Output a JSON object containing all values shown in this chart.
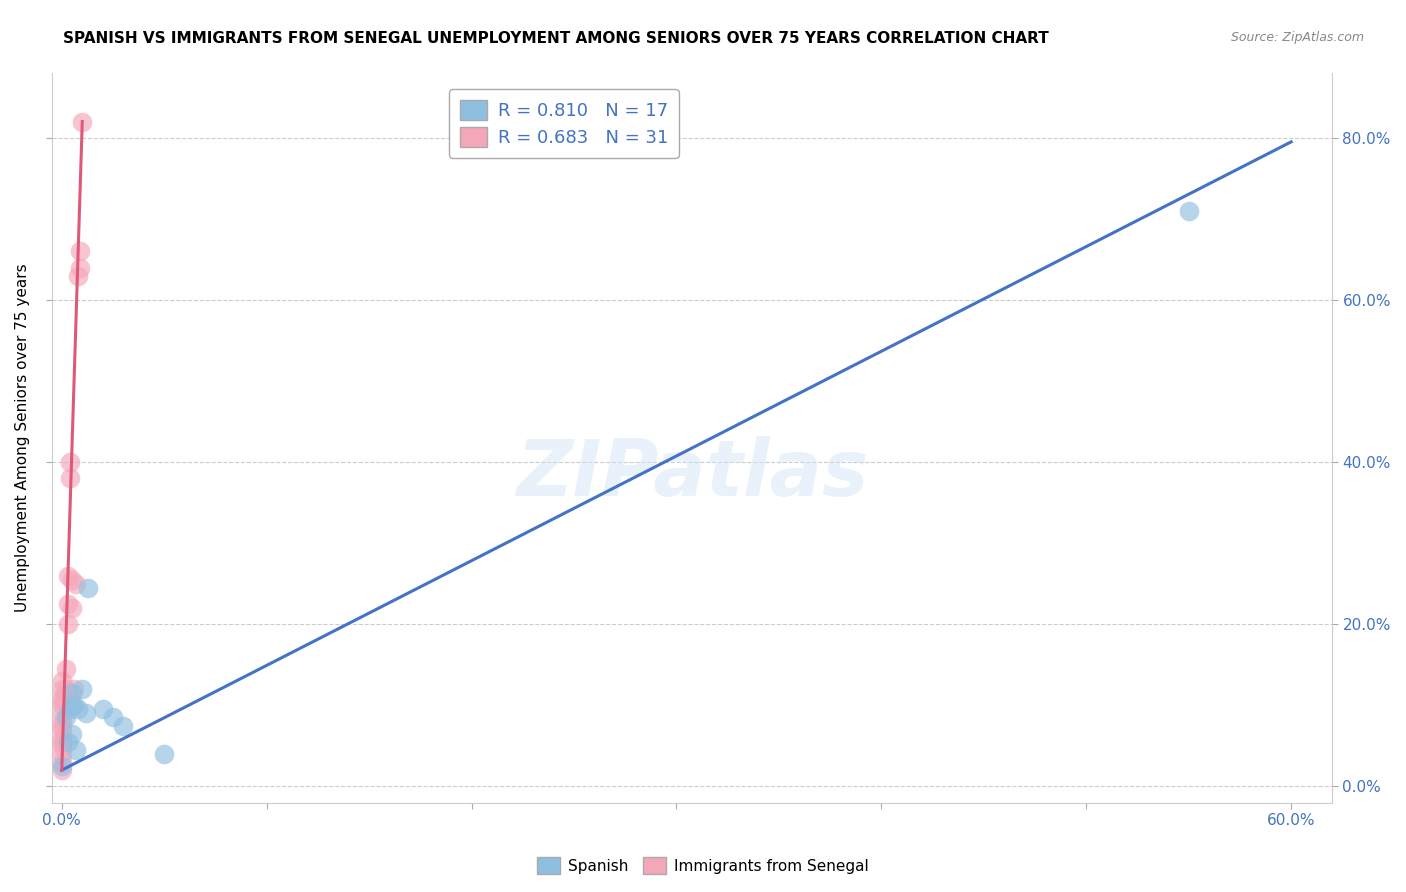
{
  "title": "SPANISH VS IMMIGRANTS FROM SENEGAL UNEMPLOYMENT AMONG SENIORS OVER 75 YEARS CORRELATION CHART",
  "source": "Source: ZipAtlas.com",
  "ylabel": "Unemployment Among Seniors over 75 years",
  "xlim": [
    -0.005,
    0.62
  ],
  "ylim": [
    -0.02,
    0.88
  ],
  "x_ticks": [
    0.0,
    0.1,
    0.2,
    0.3,
    0.4,
    0.5,
    0.6
  ],
  "y_ticks": [
    0.0,
    0.2,
    0.4,
    0.6,
    0.8
  ],
  "legend_labels": [
    "R = 0.810   N = 17",
    "R = 0.683   N = 31"
  ],
  "bottom_legend": [
    "Spanish",
    "Immigrants from Senegal"
  ],
  "blue_scatter_color": "#8fbfe0",
  "pink_scatter_color": "#f4a7b9",
  "blue_line_color": "#4472c4",
  "pink_line_color": "#e05878",
  "tick_label_color": "#4472c4",
  "watermark": "ZIPatlas",
  "title_fontsize": 11,
  "source_fontsize": 9,
  "spanish_x": [
    0.0,
    0.002,
    0.003,
    0.004,
    0.005,
    0.005,
    0.006,
    0.007,
    0.008,
    0.01,
    0.012,
    0.013,
    0.02,
    0.025,
    0.03,
    0.05,
    0.55
  ],
  "spanish_y": [
    0.025,
    0.085,
    0.055,
    0.095,
    0.115,
    0.065,
    0.1,
    0.045,
    0.095,
    0.12,
    0.09,
    0.245,
    0.095,
    0.085,
    0.075,
    0.04,
    0.71
  ],
  "senegal_x": [
    0.0,
    0.0,
    0.0,
    0.0,
    0.0,
    0.0,
    0.0,
    0.0,
    0.0,
    0.0,
    0.0,
    0.0,
    0.0,
    0.0,
    0.0,
    0.002,
    0.002,
    0.003,
    0.003,
    0.003,
    0.004,
    0.004,
    0.005,
    0.005,
    0.005,
    0.006,
    0.007,
    0.008,
    0.009,
    0.009,
    0.01
  ],
  "senegal_y": [
    0.02,
    0.03,
    0.04,
    0.05,
    0.055,
    0.06,
    0.07,
    0.075,
    0.08,
    0.09,
    0.1,
    0.105,
    0.11,
    0.12,
    0.13,
    0.12,
    0.145,
    0.2,
    0.225,
    0.26,
    0.38,
    0.4,
    0.1,
    0.22,
    0.255,
    0.12,
    0.25,
    0.63,
    0.64,
    0.66,
    0.82
  ],
  "blue_line_x": [
    0.0,
    0.6
  ],
  "blue_line_y": [
    0.02,
    0.795
  ],
  "pink_line_x": [
    0.0,
    0.01
  ],
  "pink_line_y": [
    0.02,
    0.82
  ]
}
